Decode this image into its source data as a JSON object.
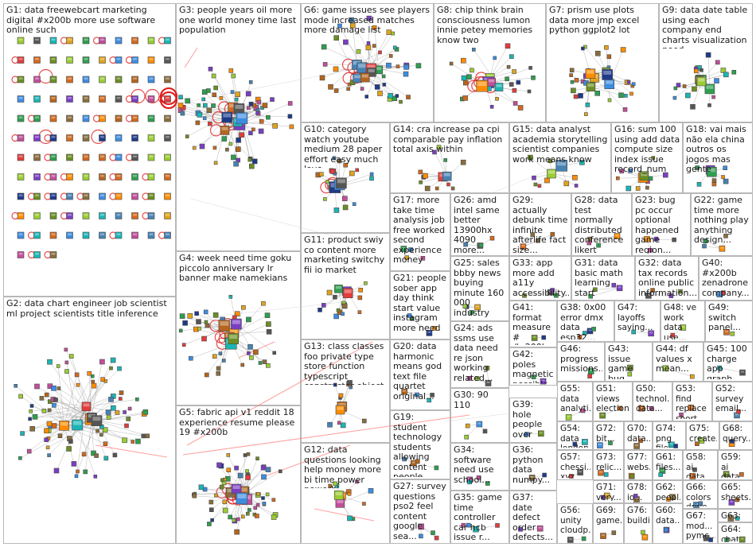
{
  "groups": [
    {
      "id": "G1",
      "label": "G1: data freewebcart marketing digital #x200b more use software online such"
    },
    {
      "id": "G2",
      "label": "G2: data chart engineer job scientist ml project scientists title inference"
    },
    {
      "id": "G3",
      "label": "G3: people years oil more one world money time last population"
    },
    {
      "id": "G4",
      "label": "G4: week need time goku piccolo anniversary lr banner make namekians"
    },
    {
      "id": "G5",
      "label": "G5: fabric api v1 reddit 18 experience resume please 19 #x200b"
    },
    {
      "id": "G6",
      "label": "G6: game issues see players mode increased matches more damage list"
    },
    {
      "id": "G7",
      "label": "G7: prism use plots data more jmp excel python ggplot2 lot"
    },
    {
      "id": "G8",
      "label": "G8: chip think brain consciousness lumon innie petey memories know two"
    },
    {
      "id": "G9",
      "label": "G9: data date table using each company end charts visualization need"
    },
    {
      "id": "G10",
      "label": "G10: category watch youtube medium 28 paper effort easy much love"
    },
    {
      "id": "G11",
      "label": "G11: product swiy co content more marketing switchy fii io market"
    },
    {
      "id": "G12",
      "label": "G12: data questions looking help money more bi time power powerbi"
    },
    {
      "id": "G13",
      "label": "G13: class classes foo private type store function typescript constructor object"
    },
    {
      "id": "G14",
      "label": "G14: cra increase pa cpi comparable pay inflation total axis within"
    },
    {
      "id": "G15",
      "label": "G15: data analyst academia storytelling scientist companies work means know model"
    },
    {
      "id": "G16",
      "label": "G16: sum 100 using add data compute size index issue record_num"
    },
    {
      "id": "G17",
      "label": "G17: more take time analysis job free worked second experience money"
    },
    {
      "id": "G18",
      "label": "G18: vai mais não ela china outros os jogos mas gente"
    },
    {
      "id": "G19",
      "label": "G19: student technology students allowing content people..."
    },
    {
      "id": "G20",
      "label": "G20: data harmonic means god text file quartet original..."
    },
    {
      "id": "G21",
      "label": "G21: people sober app day think start value instagram more need"
    },
    {
      "id": "G22",
      "label": "G22: game time more nothing play anything design..."
    },
    {
      "id": "G23",
      "label": "G23: bug pc occur optional happened game region..."
    },
    {
      "id": "G24",
      "label": "G24: ads ssms use data need re json working related..."
    },
    {
      "id": "G25",
      "label": "G25: sales bbby news buying minute 160 000 industry good"
    },
    {
      "id": "G26",
      "label": "G26: amd intel same better 13900hx 4090 more..."
    },
    {
      "id": "G27",
      "label": "G27: survey questions pso2 feel content google sea..."
    },
    {
      "id": "G28",
      "label": "G28: data test normally distributed conference likert signed..."
    },
    {
      "id": "G29",
      "label": "G29: actually debunk time infinite afterlife fact size..."
    },
    {
      "id": "G30",
      "label": "G30: 90 110"
    },
    {
      "id": "G31",
      "label": "G31: data basic math learning start algorithms..."
    },
    {
      "id": "G32",
      "label": "G32: data tax records online public information..."
    },
    {
      "id": "G33",
      "label": "G33: app more add a11y accessibility..."
    },
    {
      "id": "G34",
      "label": "G34: software need use school..."
    },
    {
      "id": "G35",
      "label": "G35: game time controller car hcb issue r..."
    },
    {
      "id": "G36",
      "label": "G36: python data numpy..."
    },
    {
      "id": "G37",
      "label": "G37: date defect order defects..."
    },
    {
      "id": "G38",
      "label": "G38: 0x00 error dmx data esp32..."
    },
    {
      "id": "G39",
      "label": "G39: hole people over world around..."
    },
    {
      "id": "G40",
      "label": "G40: #x200b zenadrone company..."
    },
    {
      "id": "G41",
      "label": "G41: format measure # #x200b..."
    },
    {
      "id": "G42",
      "label": "G42: poles magnetic possible field lidar..."
    },
    {
      "id": "G43",
      "label": "G43: issue game bug save..."
    },
    {
      "id": "G44",
      "label": "G44: df values x mean..."
    },
    {
      "id": "G45",
      "label": "G45: 100 charge app graph..."
    },
    {
      "id": "G46",
      "label": "G46: progress missions..."
    },
    {
      "id": "G47",
      "label": "G47: layoffs saying..."
    },
    {
      "id": "G48",
      "label": "G48: ve work data use..."
    },
    {
      "id": "G49",
      "label": "G49: switch panel..."
    },
    {
      "id": "G50",
      "label": "G50: technol... data..."
    },
    {
      "id": "G51",
      "label": "G51: views election..."
    },
    {
      "id": "G52",
      "label": "G52: survey email..."
    },
    {
      "id": "G53",
      "label": "G53: find replace short..."
    },
    {
      "id": "G54",
      "label": "G54: data london..."
    },
    {
      "id": "G55",
      "label": "G55: data analyti..."
    },
    {
      "id": "G56",
      "label": "G56: unity cloudp..."
    },
    {
      "id": "G57",
      "label": "G57: chessi... xyz..."
    },
    {
      "id": "G58",
      "label": "G58: ai data..."
    },
    {
      "id": "G59",
      "label": "G59: ai data..."
    },
    {
      "id": "G60",
      "label": "G60: data..."
    },
    {
      "id": "G61",
      "label": "G61: files..."
    },
    {
      "id": "G62",
      "label": "G62: peopl..."
    },
    {
      "id": "G63",
      "label": "G63: reporte..."
    },
    {
      "id": "G64",
      "label": "G64: chat gpt..."
    },
    {
      "id": "G65",
      "label": "G65: sheets..."
    },
    {
      "id": "G66",
      "label": "G66: colors drive..."
    },
    {
      "id": "G67",
      "label": "G67: mod... pymc..."
    },
    {
      "id": "G68",
      "label": "G68: query..."
    },
    {
      "id": "G69",
      "label": "G69: game..."
    },
    {
      "id": "G70",
      "label": "G70: data..."
    },
    {
      "id": "G71",
      "label": "G71: very..."
    },
    {
      "id": "G72",
      "label": "G72: bit..."
    },
    {
      "id": "G73",
      "label": "G73: relic..."
    },
    {
      "id": "G74",
      "label": "G74: png file"
    },
    {
      "id": "G75",
      "label": "G75: create..."
    },
    {
      "id": "G76",
      "label": "G76: buildi..."
    },
    {
      "id": "G77",
      "label": "G77: webs..."
    },
    {
      "id": "G78",
      "label": "G78: io..."
    }
  ],
  "colors": {
    "background": "#ffffff",
    "group_border": "#b8b8b8",
    "edge": "#9a9a9a",
    "self_loop": "#e02020",
    "highlight_edge": "#ff7a7a",
    "label_text": "#1a1a1a"
  },
  "node_palette": [
    "#8a6d3b",
    "#e23c3c",
    "#3c8de2",
    "#2e9e4f",
    "#7a3ec2",
    "#e0a31c",
    "#1bb5b5",
    "#c24e9a",
    "#555555",
    "#6b8e23",
    "#d2691e",
    "#1e3a8a",
    "#b5651d",
    "#4682b4",
    "#9acd32",
    "#ff8c00"
  ]
}
